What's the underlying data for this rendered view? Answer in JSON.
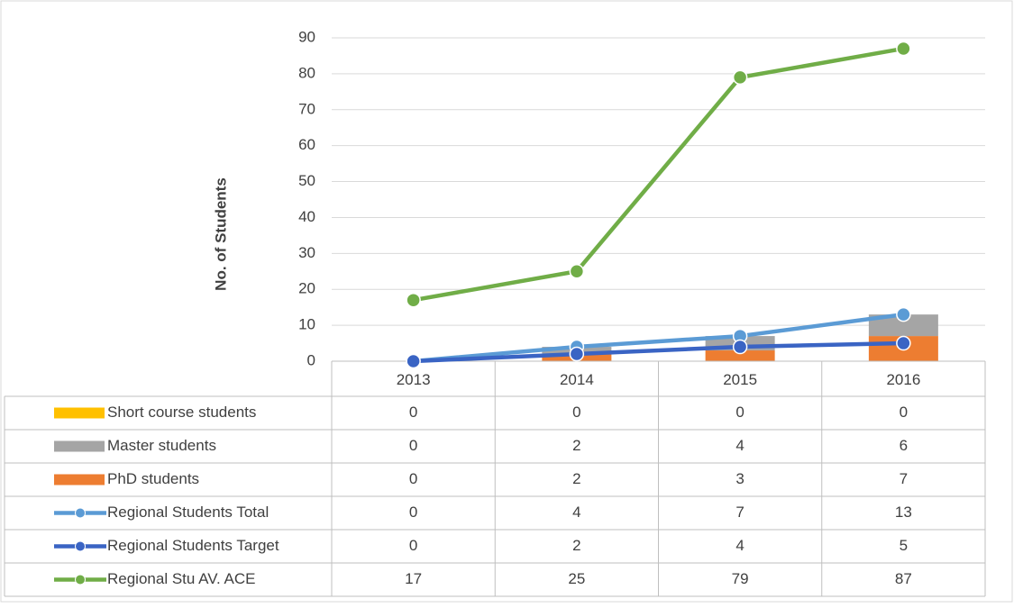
{
  "chart_data": {
    "type": "combo",
    "y_label": "No. of Students",
    "categories": [
      "2013",
      "2014",
      "2015",
      "2016"
    ],
    "ylim": [
      0,
      90
    ],
    "yticks": [
      0,
      10,
      20,
      30,
      40,
      50,
      60,
      70,
      80,
      90
    ],
    "grid": true,
    "series": [
      {
        "name": "Short course students",
        "type": "bar",
        "color": "#ffc000",
        "values": [
          0,
          0,
          0,
          0
        ]
      },
      {
        "name": "Master students",
        "type": "bar",
        "color": "#a5a5a5",
        "values": [
          0,
          2,
          4,
          6
        ]
      },
      {
        "name": "PhD students",
        "type": "bar",
        "color": "#ed7d31",
        "values": [
          0,
          2,
          3,
          7
        ]
      },
      {
        "name": "Regional Students Total",
        "type": "line",
        "color": "#5b9bd5",
        "values": [
          0,
          4,
          7,
          13
        ]
      },
      {
        "name": "Regional Students Target",
        "type": "line",
        "color": "#3a64c4",
        "values": [
          0,
          2,
          4,
          5
        ]
      },
      {
        "name": "Regional Stu AV. ACE",
        "type": "line",
        "color": "#70ad47",
        "values": [
          17,
          25,
          79,
          87
        ]
      }
    ]
  }
}
